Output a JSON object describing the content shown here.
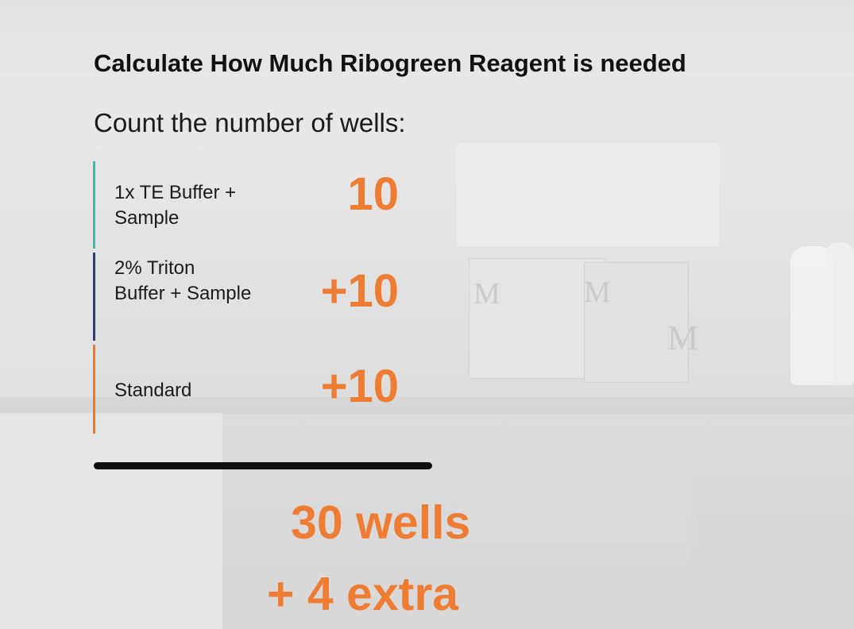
{
  "slide": {
    "title": "Calculate How Much Ribogreen Reagent is needed",
    "subtitle": "Count the number of wells:",
    "rows": [
      {
        "label_line1": "1x TE Buffer +",
        "label_line2": "Sample",
        "value": "10",
        "accent": "#49b5a8"
      },
      {
        "label_line1": "2% Triton",
        "label_line2": "Buffer + Sample",
        "value": "+10",
        "accent": "#2f3b78"
      },
      {
        "label_line1": "Standard",
        "label_line2": "",
        "value": "+10",
        "accent": "#e57b3a"
      }
    ],
    "total": "30 wells",
    "extra": "+ 4 extra",
    "highlight_color": "#ee7d33"
  }
}
